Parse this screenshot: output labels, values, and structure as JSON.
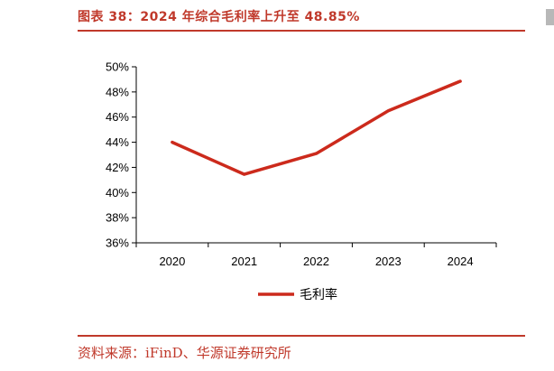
{
  "header": {
    "title": "图表 38：2024 年综合毛利率上升至 48.85%"
  },
  "footer": {
    "source": "资料来源：iFinD、华源证券研究所"
  },
  "colors": {
    "accent": "#c0392b",
    "series": "#cc2a1c",
    "axis": "#000000",
    "text": "#000000"
  },
  "chart_data": {
    "type": "line",
    "title": "",
    "xlabel": "",
    "ylabel": "",
    "categories": [
      "2020",
      "2021",
      "2022",
      "2023",
      "2024"
    ],
    "series": [
      {
        "name": "毛利率",
        "values": [
          44.0,
          41.45,
          43.1,
          46.5,
          48.85
        ]
      }
    ],
    "ylim": [
      36,
      50
    ],
    "yticks": [
      36,
      38,
      40,
      42,
      44,
      46,
      48,
      50
    ],
    "ytick_format": "percent",
    "grid": false,
    "legend": "bottom-center"
  }
}
